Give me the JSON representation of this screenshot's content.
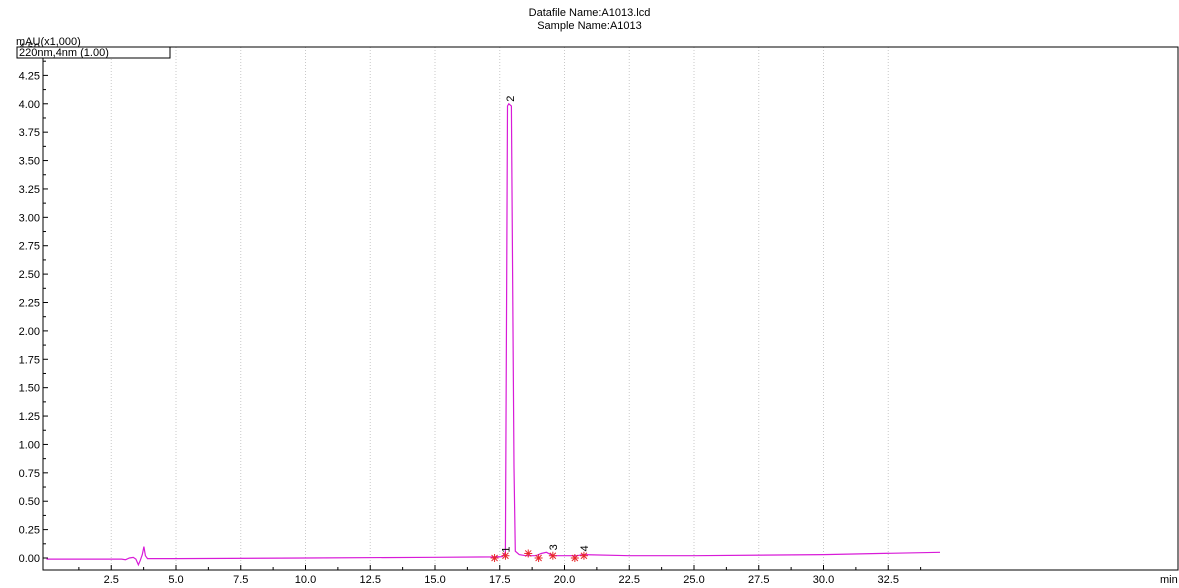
{
  "header": {
    "datafile": "Datafile Name:A1013.lcd",
    "sample": "Sample Name:A1013"
  },
  "chart_data": {
    "type": "line",
    "title": "",
    "y_unit_label": "mAU(x1,000)",
    "x_unit_label": "min",
    "xlim": [
      0,
      34.5
    ],
    "ylim": [
      -0.1,
      4.5
    ],
    "x_ticks": [
      "2.5",
      "5.0",
      "7.5",
      "10.0",
      "12.5",
      "15.0",
      "17.5",
      "20.0",
      "22.5",
      "25.0",
      "27.5",
      "30.0",
      "32.5"
    ],
    "y_ticks": [
      "0.00",
      "0.25",
      "0.50",
      "0.75",
      "1.00",
      "1.25",
      "1.50",
      "1.75",
      "2.00",
      "2.25",
      "2.50",
      "2.75",
      "3.00",
      "3.25",
      "3.50",
      "3.75",
      "4.00",
      "4.25",
      "4.50"
    ],
    "legend": "220nm,4nm (1.00)",
    "line_color": "#d81bd8",
    "marker_color": "#e8262a",
    "grid": true,
    "series": [
      {
        "name": "220nm,4nm (1.00)",
        "x": [
          0.0,
          2.9,
          3.05,
          3.2,
          3.35,
          3.45,
          3.55,
          3.62,
          3.7,
          3.76,
          3.82,
          3.9,
          4.1,
          5.0,
          10.0,
          15.0,
          17.3,
          17.6,
          17.72,
          17.8,
          17.85,
          17.95,
          18.05,
          18.1,
          18.25,
          18.5,
          18.9,
          19.1,
          19.3,
          19.55,
          19.8,
          20.5,
          20.7,
          22.5,
          25.0,
          30.0,
          34.5
        ],
        "y": [
          -0.01,
          -0.01,
          -0.015,
          0.0,
          0.005,
          -0.01,
          -0.06,
          -0.02,
          0.03,
          0.1,
          0.02,
          -0.005,
          -0.005,
          -0.005,
          0.0,
          0.006,
          0.01,
          0.012,
          0.05,
          3.98,
          4.0,
          3.98,
          0.8,
          0.06,
          0.03,
          0.02,
          0.02,
          0.04,
          0.05,
          0.02,
          0.02,
          0.02,
          0.03,
          0.02,
          0.02,
          0.03,
          0.05
        ]
      }
    ],
    "peak_labels": [
      {
        "text": "1",
        "x": 17.72,
        "y": 0.03
      },
      {
        "text": "2",
        "x": 17.9,
        "y": 4.0
      },
      {
        "text": "3",
        "x": 19.55,
        "y": 0.05
      },
      {
        "text": "4",
        "x": 20.75,
        "y": 0.04
      }
    ],
    "integration_marks": [
      {
        "x": 17.3,
        "y": 0.0
      },
      {
        "x": 17.72,
        "y": 0.02
      },
      {
        "x": 18.6,
        "y": 0.04
      },
      {
        "x": 19.0,
        "y": 0.0
      },
      {
        "x": 19.55,
        "y": 0.02
      },
      {
        "x": 20.4,
        "y": 0.0
      },
      {
        "x": 20.75,
        "y": 0.02
      }
    ]
  }
}
